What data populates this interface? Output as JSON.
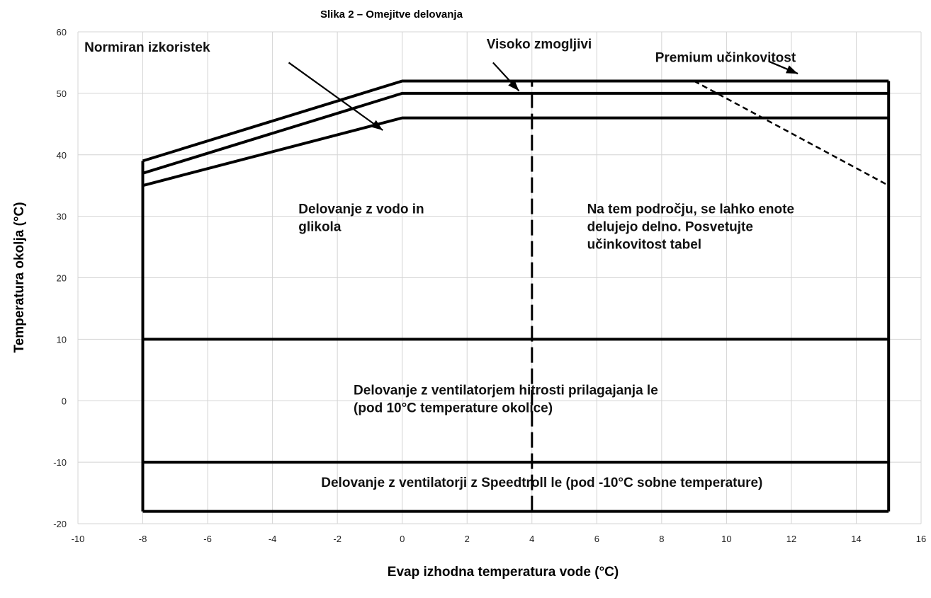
{
  "chart_data": {
    "type": "line",
    "title": "Slika 2 – Omejitve delovanja",
    "xlabel": "Evap izhodna temperatura vode (°C)",
    "ylabel": "Temperatura okolja (°C)",
    "xlim": [
      -10,
      16
    ],
    "ylim": [
      -20,
      60
    ],
    "xticks": [
      -10,
      -8,
      -6,
      -4,
      -2,
      0,
      2,
      4,
      6,
      8,
      10,
      12,
      14,
      16
    ],
    "yticks": [
      -20,
      -10,
      0,
      10,
      20,
      30,
      40,
      50,
      60
    ],
    "grid": true,
    "series": [
      {
        "name": "Premium učinkovitost",
        "style": "solid",
        "x": [
          -8,
          0,
          15
        ],
        "y": [
          39,
          52,
          52
        ]
      },
      {
        "name": "Visoko zmogljivi",
        "style": "solid",
        "x": [
          -8,
          0,
          15
        ],
        "y": [
          37,
          50,
          50
        ]
      },
      {
        "name": "Normiran izkoristek",
        "style": "solid",
        "x": [
          -8,
          0,
          15
        ],
        "y": [
          35,
          46,
          46
        ]
      },
      {
        "style": "solid",
        "x": [
          -8,
          15
        ],
        "y": [
          10,
          10
        ]
      },
      {
        "style": "solid",
        "x": [
          -8,
          15
        ],
        "y": [
          -10,
          -10
        ]
      },
      {
        "style": "solid",
        "x": [
          -8,
          15
        ],
        "y": [
          -18,
          -18
        ]
      },
      {
        "style": "solid",
        "x": [
          -8,
          -8
        ],
        "y": [
          -18,
          39
        ]
      },
      {
        "style": "solid",
        "x": [
          15,
          15
        ],
        "y": [
          -18,
          52
        ]
      },
      {
        "style": "dashed",
        "x": [
          4,
          4
        ],
        "y": [
          -18,
          52
        ]
      },
      {
        "style": "dotted",
        "x": [
          9,
          15
        ],
        "y": [
          52,
          35
        ]
      }
    ],
    "annotations": [
      {
        "label": "Normiran izkoristek",
        "text_x": -9.8,
        "text_y": 56.8,
        "arrow_from": [
          -3.5,
          55
        ],
        "arrow_to": [
          -0.6,
          44
        ]
      },
      {
        "label": "Visoko zmogljivi",
        "text_x": 2.6,
        "text_y": 57.3,
        "arrow_from": [
          2.8,
          55
        ],
        "arrow_to": [
          3.6,
          50.4
        ]
      },
      {
        "label": "Premium učinkovitost",
        "text_x": 7.8,
        "text_y": 55.1,
        "arrow_from": [
          11.3,
          55.2
        ],
        "arrow_to": [
          12.2,
          53.2
        ]
      },
      {
        "lines": [
          "Delovanje z vodo in",
          "glikola"
        ],
        "x": -3.2,
        "y": 30.5
      },
      {
        "lines": [
          "Na tem področju, se lahko enote",
          "delujejo delno. Posvetujte",
          "učinkovitost tabel"
        ],
        "x": 5.7,
        "y": 30.5
      },
      {
        "lines": [
          "Delovanje z ventilatorjem hitrosti prilagajanja le",
          "(pod 10°C temperature okolice)"
        ],
        "x": -1.5,
        "y": 1.0
      },
      {
        "lines": [
          "Delovanje z ventilatorji z Speedtroll le (pod -10°C sobne temperature)"
        ],
        "x": -2.5,
        "y": -14.0
      }
    ]
  }
}
